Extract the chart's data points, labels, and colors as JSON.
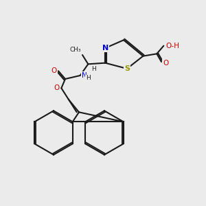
{
  "background_color": "#ebebeb",
  "bond_color": "#1a1a1a",
  "bond_lw": 1.5,
  "atom_colors": {
    "N": "#0000cc",
    "O": "#cc0000",
    "S": "#999900",
    "C": "#1a1a1a",
    "H": "#1a1a1a"
  },
  "font_size": 7.5,
  "figsize": [
    3.0,
    3.0
  ],
  "dpi": 100
}
